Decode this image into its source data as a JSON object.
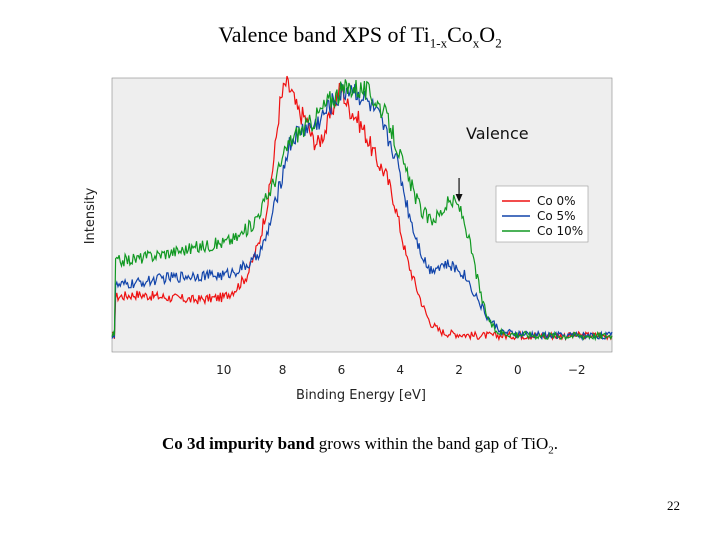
{
  "slide": {
    "title_main": "Valence band XPS of Ti",
    "title_sub1": "1-x",
    "title_mid": "Co",
    "title_sub2": "x",
    "title_end": "O",
    "title_sub3": "2",
    "caption_bold": "Co 3d impurity band",
    "caption_text": " grows within the band gap of TiO",
    "caption_sub": "2",
    "caption_end": ".",
    "page_number": "22"
  },
  "chart_data": {
    "type": "line",
    "title": "",
    "xlabel": "Binding Energy [eV]",
    "ylabel": "Intensity",
    "x_reversed": true,
    "xlim": [
      13.8,
      -3.2
    ],
    "ylim": [
      0,
      1
    ],
    "x_ticks": [
      10,
      8,
      6,
      4,
      2,
      0,
      -2
    ],
    "x_tick_labels": [
      "10",
      "8",
      "6",
      "4",
      "2",
      "0",
      "−2"
    ],
    "grid": false,
    "background": "#eeeeee",
    "legend_position": "right",
    "annotation": {
      "text": "Valence",
      "arrow_x": 2.0
    },
    "series": [
      {
        "name": "Co 0%",
        "color": "#ee1111",
        "x": [
          13.7,
          13.0,
          12.0,
          11.0,
          10.0,
          9.6,
          9.2,
          8.8,
          8.5,
          8.3,
          8.1,
          7.9,
          7.7,
          7.5,
          7.2,
          7.0,
          6.8,
          6.5,
          6.2,
          6.0,
          5.8,
          5.5,
          5.2,
          5.0,
          4.8,
          4.5,
          4.2,
          4.0,
          3.8,
          3.5,
          3.2,
          3.0,
          2.7,
          2.5,
          2.0,
          1.5,
          1.0,
          0.0,
          -1.0,
          -2.0,
          -3.1
        ],
        "y": [
          0.2,
          0.21,
          0.2,
          0.19,
          0.2,
          0.23,
          0.28,
          0.4,
          0.55,
          0.7,
          0.9,
          0.98,
          0.95,
          0.88,
          0.85,
          0.78,
          0.76,
          0.82,
          0.92,
          0.97,
          0.9,
          0.86,
          0.8,
          0.75,
          0.7,
          0.65,
          0.55,
          0.45,
          0.35,
          0.25,
          0.16,
          0.11,
          0.08,
          0.07,
          0.065,
          0.06,
          0.06,
          0.06,
          0.06,
          0.06,
          0.06
        ]
      },
      {
        "name": "Co 5%",
        "color": "#1144aa",
        "x": [
          13.7,
          13.0,
          12.0,
          11.0,
          10.0,
          9.5,
          9.0,
          8.6,
          8.3,
          8.0,
          7.8,
          7.5,
          7.2,
          7.0,
          6.7,
          6.4,
          6.0,
          5.7,
          5.4,
          5.0,
          4.7,
          4.5,
          4.2,
          4.0,
          3.8,
          3.5,
          3.2,
          3.0,
          2.8,
          2.5,
          2.2,
          2.0,
          1.8,
          1.5,
          1.2,
          1.0,
          0.7,
          0.5,
          0.0,
          -1.0,
          -2.0,
          -3.1
        ],
        "y": [
          0.24,
          0.25,
          0.27,
          0.28,
          0.28,
          0.3,
          0.33,
          0.4,
          0.52,
          0.65,
          0.75,
          0.8,
          0.82,
          0.82,
          0.85,
          0.9,
          0.94,
          0.97,
          0.94,
          0.9,
          0.85,
          0.8,
          0.73,
          0.65,
          0.55,
          0.43,
          0.34,
          0.3,
          0.31,
          0.32,
          0.31,
          0.3,
          0.28,
          0.22,
          0.16,
          0.12,
          0.09,
          0.07,
          0.065,
          0.06,
          0.06,
          0.06
        ]
      },
      {
        "name": "Co 10%",
        "color": "#119922",
        "x": [
          13.7,
          13.0,
          12.0,
          11.0,
          10.0,
          9.5,
          9.0,
          8.6,
          8.3,
          8.0,
          7.8,
          7.5,
          7.2,
          7.0,
          6.7,
          6.4,
          6.0,
          5.7,
          5.3,
          5.0,
          4.7,
          4.4,
          4.1,
          3.9,
          3.6,
          3.3,
          3.0,
          2.7,
          2.4,
          2.2,
          2.0,
          1.8,
          1.6,
          1.4,
          1.2,
          1.0,
          0.8,
          0.5,
          0.0,
          -1.0,
          -2.0,
          -3.1
        ],
        "y": [
          0.33,
          0.34,
          0.36,
          0.38,
          0.4,
          0.42,
          0.47,
          0.55,
          0.62,
          0.7,
          0.76,
          0.8,
          0.82,
          0.84,
          0.88,
          0.92,
          0.95,
          0.97,
          0.96,
          0.94,
          0.9,
          0.84,
          0.75,
          0.68,
          0.6,
          0.52,
          0.48,
          0.5,
          0.54,
          0.55,
          0.53,
          0.47,
          0.38,
          0.28,
          0.18,
          0.12,
          0.08,
          0.07,
          0.065,
          0.06,
          0.06,
          0.06
        ]
      }
    ]
  }
}
